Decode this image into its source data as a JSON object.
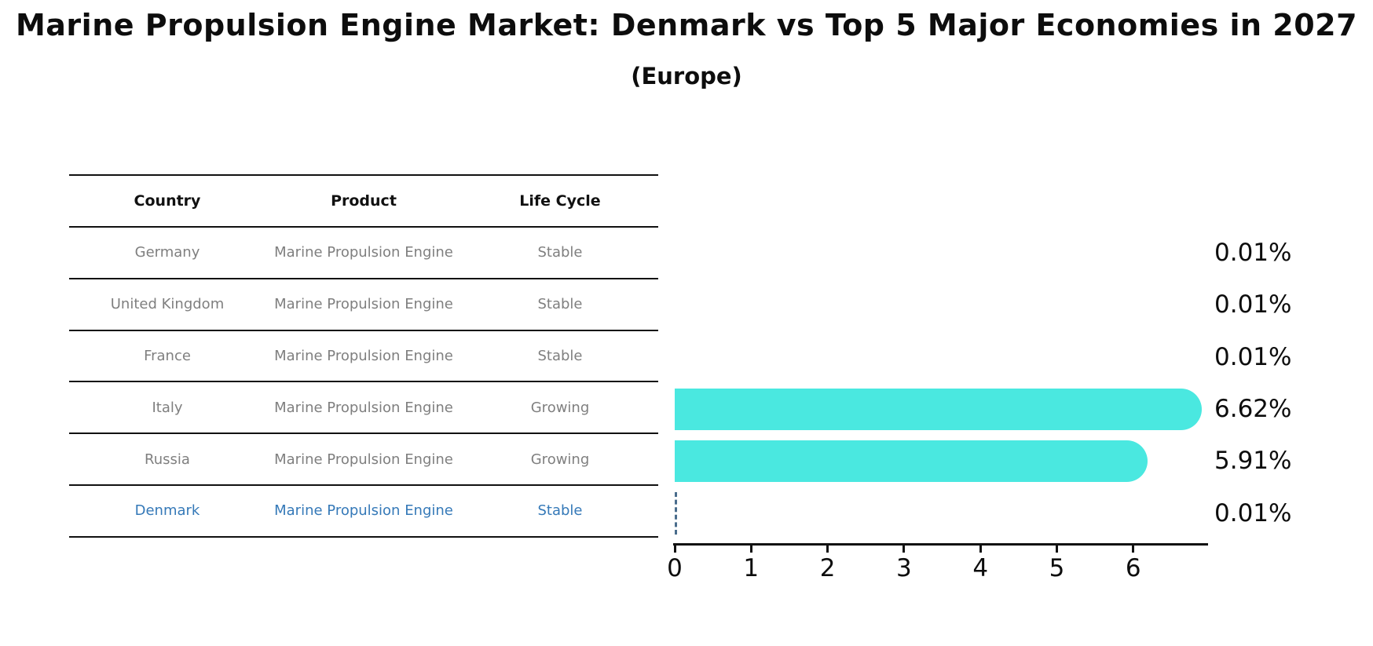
{
  "chart_data": {
    "type": "bar",
    "orientation": "horizontal",
    "title": "Marine Propulsion Engine Market: Denmark vs Top 5 Major Economies in 2027",
    "subtitle": "(Europe)",
    "categories": [
      "Germany",
      "United Kingdom",
      "France",
      "Italy",
      "Russia",
      "Denmark"
    ],
    "values": [
      0.01,
      0.01,
      0.01,
      6.62,
      5.91,
      0.01
    ],
    "labels": [
      "0.01%",
      "0.01%",
      "0.01%",
      "6.62%",
      "5.91%",
      "0.01%"
    ],
    "xlabel": "",
    "ylabel": "",
    "xlim": [
      0,
      7
    ],
    "xticks": [
      0,
      1,
      2,
      3,
      4,
      5,
      6
    ],
    "grid": false,
    "legend": false,
    "bar_color": "#4ae8e0",
    "highlight_marker": {
      "category": "Denmark",
      "style": "dashed-line",
      "color": "#4a6d8c"
    }
  },
  "table": {
    "headers": [
      "Country",
      "Product",
      "Life Cycle"
    ],
    "rows": [
      {
        "country": "Germany",
        "product": "Marine Propulsion Engine",
        "life_cycle": "Stable",
        "highlighted": false
      },
      {
        "country": "United Kingdom",
        "product": "Marine Propulsion Engine",
        "life_cycle": "Stable",
        "highlighted": false
      },
      {
        "country": "France",
        "product": "Marine Propulsion Engine",
        "life_cycle": "Stable",
        "highlighted": false
      },
      {
        "country": "Italy",
        "product": "Marine Propulsion Engine",
        "life_cycle": "Growing",
        "highlighted": false
      },
      {
        "country": "Russia",
        "product": "Marine Propulsion Engine",
        "life_cycle": "Growing",
        "highlighted": false
      },
      {
        "country": "Denmark",
        "product": "Marine Propulsion Engine",
        "life_cycle": "Stable",
        "highlighted": true
      }
    ]
  },
  "colors": {
    "text_primary": "#0d0d0d",
    "text_gray": "#7f7f7f",
    "highlight_blue": "#3579b8",
    "bar_turquoise": "#4ae8e0",
    "dashed_marker": "#4a6d8c",
    "rule_black": "#111111"
  }
}
